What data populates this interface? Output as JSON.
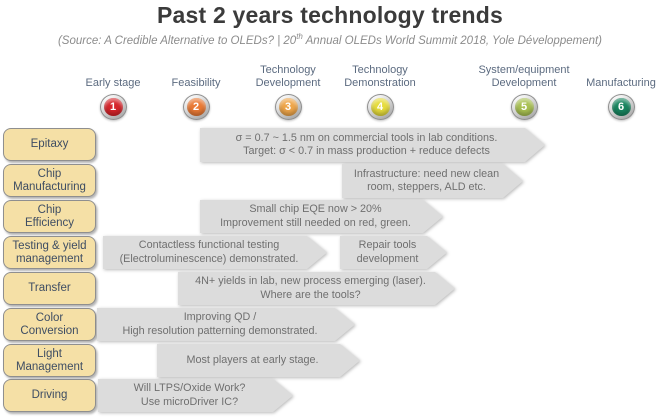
{
  "title": "Past 2 years technology trends",
  "subtitle": {
    "pre": "(Source: A Credible Alternative to OLEDs? | 20",
    "sup": "th",
    "post": " Annual OLEDs World Summit 2018, Yole Développement)"
  },
  "stages": [
    {
      "label": "Early stage",
      "num": "1",
      "color": "#d6252b"
    },
    {
      "label": "Feasibility",
      "num": "2",
      "color": "#ea7a35"
    },
    {
      "label": "Technology\nDevelopment",
      "num": "3",
      "color": "#efa64a"
    },
    {
      "label": "Technology\nDemonstration",
      "num": "4",
      "color": "#e6dc3c"
    },
    {
      "label": "System/equipment\nDevelopment",
      "num": "5",
      "color": "#a9c153"
    },
    {
      "label": "Manufacturing",
      "num": "6",
      "color": "#18855f"
    }
  ],
  "rows": [
    {
      "label": "Epitaxy",
      "arrows": [
        {
          "text": "σ = 0.7 ~ 1.5 nm on commercial tools in lab conditions.\nTarget: σ < 0.7 in mass production + reduce defects"
        }
      ]
    },
    {
      "label": "Chip\nManufacturing",
      "arrows": [
        {
          "text": "Infrastructure: need new clean\nroom, steppers,  ALD etc."
        }
      ]
    },
    {
      "label": "Chip\nEfficiency",
      "arrows": [
        {
          "text": "Small chip EQE now > 20%\nImprovement still needed on red, green."
        }
      ]
    },
    {
      "label": "Testing & yield\nmanagement",
      "arrows": [
        {
          "text": "Contactless functional testing\n(Electroluminescence) demonstrated."
        },
        {
          "text": "Repair tools\ndevelopment"
        }
      ]
    },
    {
      "label": "Transfer",
      "arrows": [
        {
          "text": "4N+ yields in lab, new process emerging (laser).\nWhere are the tools?"
        }
      ]
    },
    {
      "label": "Color\nConversion",
      "arrows": [
        {
          "text": "Improving QD /\nHigh resolution patterning demonstrated."
        }
      ]
    },
    {
      "label": "Light\nManagement",
      "arrows": [
        {
          "text": "Most players at early stage."
        }
      ]
    },
    {
      "label": "Driving",
      "arrows": [
        {
          "text": "Will LTPS/Oxide Work?\nUse microDriver IC?"
        }
      ]
    }
  ]
}
